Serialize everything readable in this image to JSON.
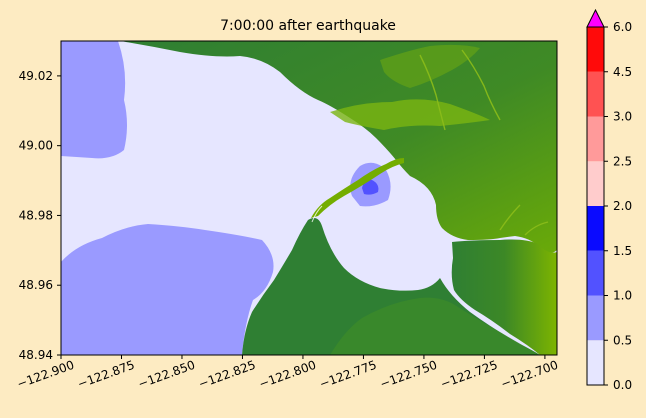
{
  "chart_data": {
    "type": "heatmap",
    "title": "7:00:00 after earthquake",
    "xlim": [
      -122.9,
      -122.695
    ],
    "ylim": [
      48.94,
      49.03
    ],
    "x_ticks": [
      -122.9,
      -122.875,
      -122.85,
      -122.825,
      -122.8,
      -122.775,
      -122.75,
      -122.725,
      -122.7
    ],
    "x_tick_labels": [
      "−122.900",
      "−122.875",
      "−122.850",
      "−122.825",
      "−122.800",
      "−122.775",
      "−122.750",
      "−122.725",
      "−122.700"
    ],
    "y_ticks": [
      48.94,
      48.96,
      48.98,
      49.0,
      49.02
    ],
    "y_tick_labels": [
      "48.94",
      "48.96",
      "48.98",
      "49.00",
      "49.02"
    ],
    "colorbar": {
      "bounds": [
        0.0,
        0.5,
        1.0,
        1.5,
        2.0,
        2.5,
        3.0,
        4.5,
        6.0
      ],
      "tick_labels": [
        "0.0",
        "0.5",
        "1.0",
        "1.5",
        "2.0",
        "2.5",
        "3.0",
        "4.5",
        "6.0"
      ],
      "colors": [
        "#e6e6ff",
        "#9a9aff",
        "#5252ff",
        "#0a0aff",
        "#ffcccc",
        "#ff9a9a",
        "#ff5252",
        "#ff0a0a"
      ],
      "extend_color": "#ff00ff"
    },
    "land_colors": [
      "#2e7d32",
      "#5a9e10",
      "#86b800"
    ]
  }
}
